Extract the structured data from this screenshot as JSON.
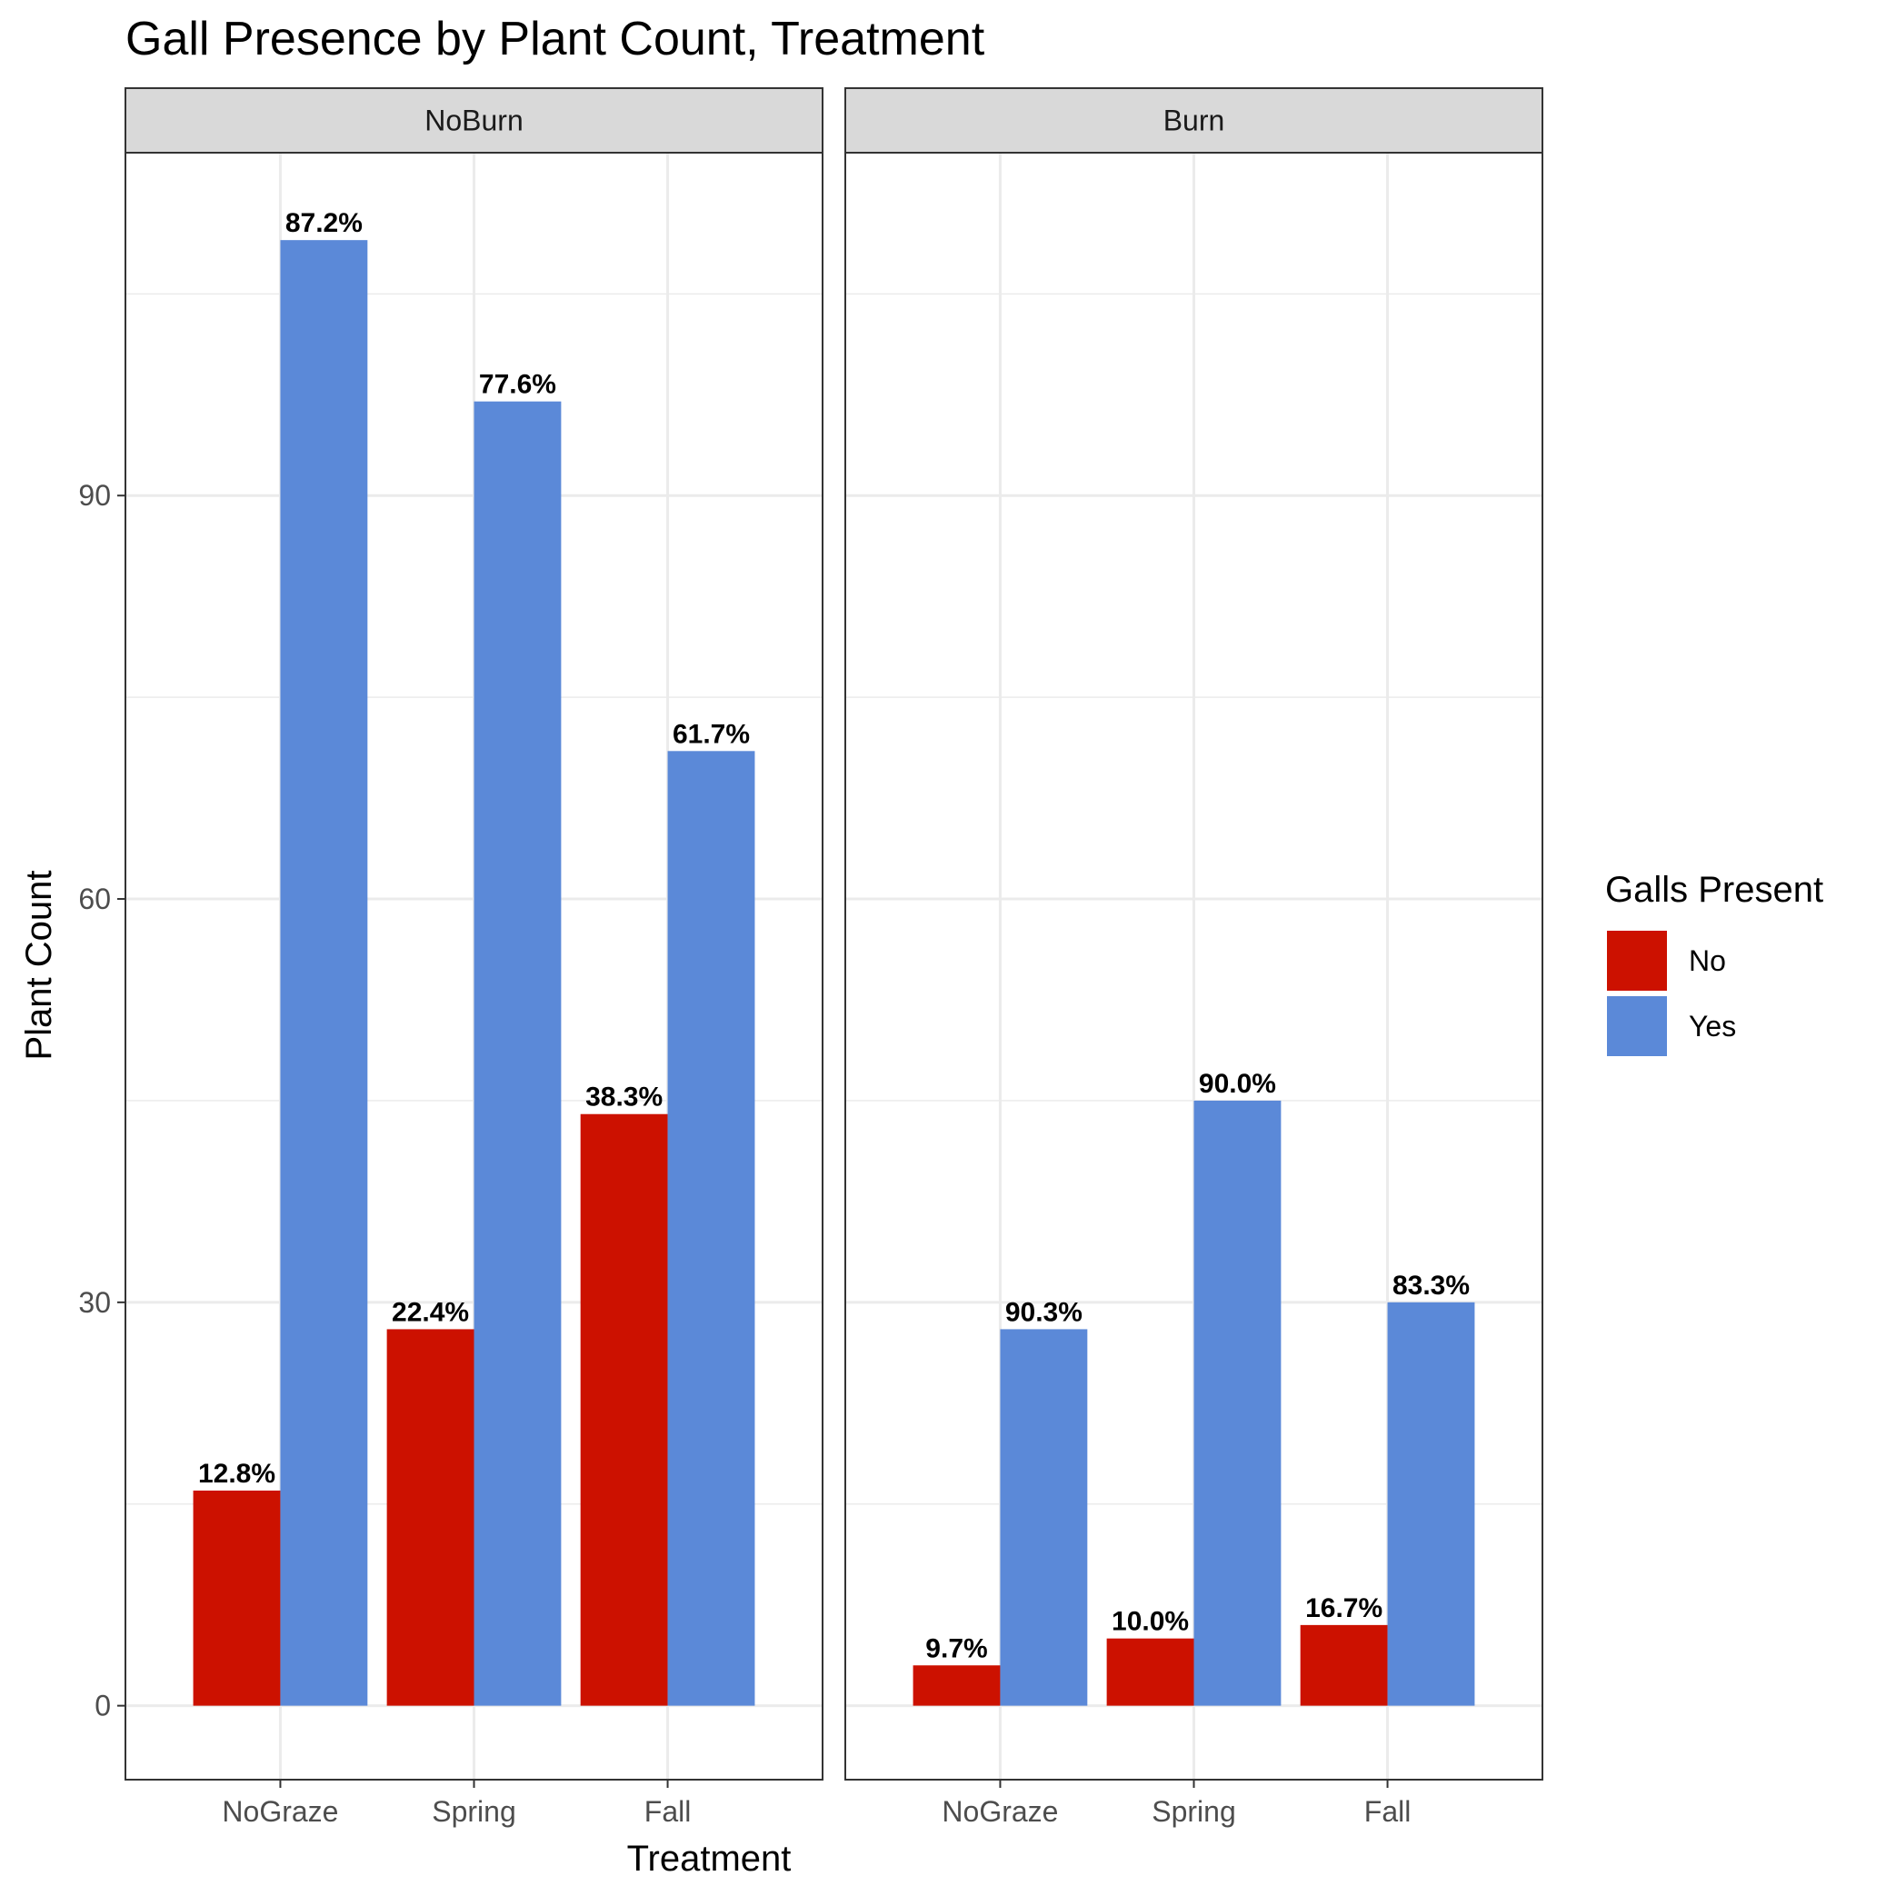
{
  "chart_data": {
    "type": "bar",
    "title": "Gall Presence by Plant Count, Treatment",
    "xlabel": "Treatment",
    "ylabel": "Plant Count",
    "ylim": [
      -5.5,
      115.5
    ],
    "yticks": [
      0,
      30,
      60,
      90
    ],
    "grid": true,
    "categories": [
      "NoGraze",
      "Spring",
      "Fall"
    ],
    "panels": [
      {
        "name": "NoBurn",
        "series": [
          {
            "name": "No",
            "values": [
              16,
              28,
              44
            ],
            "labels": [
              "12.8%",
              "22.4%",
              "38.3%"
            ]
          },
          {
            "name": "Yes",
            "values": [
              109,
              97,
              71
            ],
            "labels": [
              "87.2%",
              "77.6%",
              "61.7%"
            ]
          }
        ]
      },
      {
        "name": "Burn",
        "series": [
          {
            "name": "No",
            "values": [
              3,
              5,
              6
            ],
            "labels": [
              "9.7%",
              "10.0%",
              "16.7%"
            ]
          },
          {
            "name": "Yes",
            "values": [
              28,
              45,
              30
            ],
            "labels": [
              "90.3%",
              "90.0%",
              "83.3%"
            ]
          }
        ]
      }
    ],
    "legend": {
      "title": "Galls Present",
      "position": "right",
      "items": [
        {
          "name": "No",
          "color": "#CC1100"
        },
        {
          "name": "Yes",
          "color": "#5B89D8"
        }
      ]
    }
  }
}
